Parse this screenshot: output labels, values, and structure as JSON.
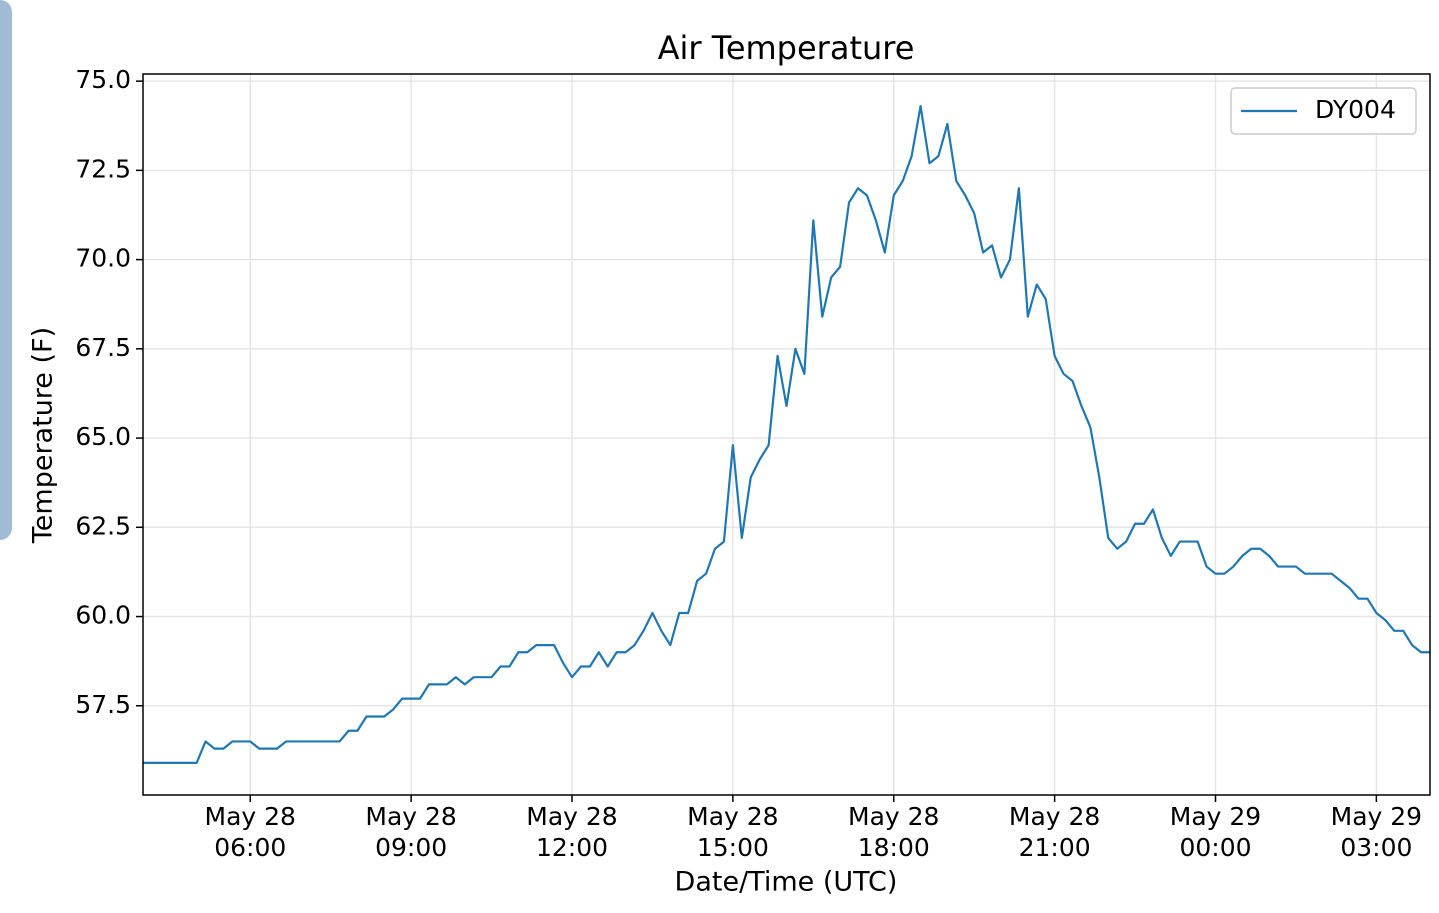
{
  "chart_data": {
    "type": "line",
    "title": "Air Temperature",
    "xlabel": "Date/Time (UTC)",
    "ylabel": "Temperature (F)",
    "xlim": [
      "May 28 04:00",
      "May 29 04:00"
    ],
    "xticks": [
      {
        "value": "May 28 06:00",
        "label": [
          "May 28",
          "06:00"
        ]
      },
      {
        "value": "May 28 09:00",
        "label": [
          "May 28",
          "09:00"
        ]
      },
      {
        "value": "May 28 12:00",
        "label": [
          "May 28",
          "12:00"
        ]
      },
      {
        "value": "May 28 15:00",
        "label": [
          "May 28",
          "15:00"
        ]
      },
      {
        "value": "May 28 18:00",
        "label": [
          "May 28",
          "18:00"
        ]
      },
      {
        "value": "May 28 21:00",
        "label": [
          "May 28",
          "21:00"
        ]
      },
      {
        "value": "May 29 00:00",
        "label": [
          "May 29",
          "00:00"
        ]
      },
      {
        "value": "May 29 03:00",
        "label": [
          "May 29",
          "03:00"
        ]
      }
    ],
    "ylim": [
      55.0,
      75.2
    ],
    "yticks": [
      {
        "value": 57.5,
        "label": "57.5"
      },
      {
        "value": 60,
        "label": "60.0"
      },
      {
        "value": 62.5,
        "label": "62.5"
      },
      {
        "value": 65,
        "label": "65.0"
      },
      {
        "value": 67.5,
        "label": "67.5"
      },
      {
        "value": 70,
        "label": "70.0"
      },
      {
        "value": 72.5,
        "label": "72.5"
      },
      {
        "value": 75,
        "label": "75.0"
      }
    ],
    "grid": true,
    "legend": "upper right",
    "x": [
      "May 28 04:00",
      "May 28 04:10",
      "May 28 04:20",
      "May 28 04:30",
      "May 28 04:40",
      "May 28 04:50",
      "May 28 05:00",
      "May 28 05:10",
      "May 28 05:20",
      "May 28 05:30",
      "May 28 05:40",
      "May 28 05:50",
      "May 28 06:00",
      "May 28 06:10",
      "May 28 06:20",
      "May 28 06:30",
      "May 28 06:40",
      "May 28 06:50",
      "May 28 07:00",
      "May 28 07:10",
      "May 28 07:20",
      "May 28 07:30",
      "May 28 07:40",
      "May 28 07:50",
      "May 28 08:00",
      "May 28 08:10",
      "May 28 08:20",
      "May 28 08:30",
      "May 28 08:40",
      "May 28 08:50",
      "May 28 09:00",
      "May 28 09:10",
      "May 28 09:20",
      "May 28 09:30",
      "May 28 09:40",
      "May 28 09:50",
      "May 28 10:00",
      "May 28 10:10",
      "May 28 10:20",
      "May 28 10:30",
      "May 28 10:40",
      "May 28 10:50",
      "May 28 11:00",
      "May 28 11:10",
      "May 28 11:20",
      "May 28 11:30",
      "May 28 11:40",
      "May 28 11:50",
      "May 28 12:00",
      "May 28 12:10",
      "May 28 12:20",
      "May 28 12:30",
      "May 28 12:40",
      "May 28 12:50",
      "May 28 13:00",
      "May 28 13:10",
      "May 28 13:20",
      "May 28 13:30",
      "May 28 13:40",
      "May 28 13:50",
      "May 28 14:00",
      "May 28 14:10",
      "May 28 14:20",
      "May 28 14:30",
      "May 28 14:40",
      "May 28 14:50",
      "May 28 15:00",
      "May 28 15:10",
      "May 28 15:20",
      "May 28 15:30",
      "May 28 15:40",
      "May 28 15:50",
      "May 28 16:00",
      "May 28 16:10",
      "May 28 16:20",
      "May 28 16:30",
      "May 28 16:40",
      "May 28 16:50",
      "May 28 17:00",
      "May 28 17:10",
      "May 28 17:20",
      "May 28 17:30",
      "May 28 17:40",
      "May 28 17:50",
      "May 28 18:00",
      "May 28 18:10",
      "May 28 18:20",
      "May 28 18:30",
      "May 28 18:40",
      "May 28 18:50",
      "May 28 19:00",
      "May 28 19:10",
      "May 28 19:20",
      "May 28 19:30",
      "May 28 19:40",
      "May 28 19:50",
      "May 28 20:00",
      "May 28 20:10",
      "May 28 20:20",
      "May 28 20:30",
      "May 28 20:40",
      "May 28 20:50",
      "May 28 21:00",
      "May 28 21:10",
      "May 28 21:20",
      "May 28 21:30",
      "May 28 21:40",
      "May 28 21:50",
      "May 28 22:00",
      "May 28 22:10",
      "May 28 22:20",
      "May 28 22:30",
      "May 28 22:40",
      "May 28 22:50",
      "May 28 23:00",
      "May 28 23:10",
      "May 28 23:20",
      "May 28 23:30",
      "May 28 23:40",
      "May 28 23:50",
      "May 29 00:00",
      "May 29 00:10",
      "May 29 00:20",
      "May 29 00:30",
      "May 29 00:40",
      "May 29 00:50",
      "May 29 01:00",
      "May 29 01:10",
      "May 29 01:20",
      "May 29 01:30",
      "May 29 01:40",
      "May 29 01:50",
      "May 29 02:00",
      "May 29 02:10",
      "May 29 02:20",
      "May 29 02:30",
      "May 29 02:40",
      "May 29 02:50",
      "May 29 03:00",
      "May 29 03:10",
      "May 29 03:20",
      "May 29 03:30",
      "May 29 03:40",
      "May 29 03:50",
      "May 29 04:00"
    ],
    "series": [
      {
        "name": "DY004",
        "color": "#1f77b4",
        "values": [
          55.9,
          55.9,
          55.9,
          55.9,
          55.9,
          55.9,
          55.9,
          56.5,
          56.3,
          56.3,
          56.5,
          56.5,
          56.5,
          56.3,
          56.3,
          56.3,
          56.5,
          56.5,
          56.5,
          56.5,
          56.5,
          56.5,
          56.5,
          56.8,
          56.8,
          57.2,
          57.2,
          57.2,
          57.4,
          57.7,
          57.7,
          57.7,
          58.1,
          58.1,
          58.1,
          58.3,
          58.1,
          58.3,
          58.3,
          58.3,
          58.6,
          58.6,
          59.0,
          59.0,
          59.2,
          59.2,
          59.2,
          58.7,
          58.3,
          58.6,
          58.6,
          59.0,
          58.6,
          59.0,
          59.0,
          59.2,
          59.6,
          60.1,
          59.6,
          59.2,
          60.1,
          60.1,
          61.0,
          61.2,
          61.9,
          62.1,
          64.8,
          62.2,
          63.9,
          64.4,
          64.8,
          67.3,
          65.9,
          67.5,
          66.8,
          71.1,
          68.4,
          69.5,
          69.8,
          71.6,
          72.0,
          71.8,
          71.1,
          70.2,
          71.8,
          72.2,
          72.9,
          74.3,
          72.7,
          72.9,
          73.8,
          72.2,
          71.8,
          71.3,
          70.2,
          70.4,
          69.5,
          70.0,
          72.0,
          68.4,
          69.3,
          68.9,
          67.3,
          66.8,
          66.6,
          65.9,
          65.3,
          63.9,
          62.2,
          61.9,
          62.1,
          62.6,
          62.6,
          63.0,
          62.2,
          61.7,
          62.1,
          62.1,
          62.1,
          61.4,
          61.2,
          61.2,
          61.4,
          61.7,
          61.9,
          61.9,
          61.7,
          61.4,
          61.4,
          61.4,
          61.2,
          61.2,
          61.2,
          61.2,
          61.0,
          60.8,
          60.5,
          60.5,
          60.1,
          59.9,
          59.6,
          59.6,
          59.2,
          59.0,
          59.0
        ]
      }
    ]
  }
}
